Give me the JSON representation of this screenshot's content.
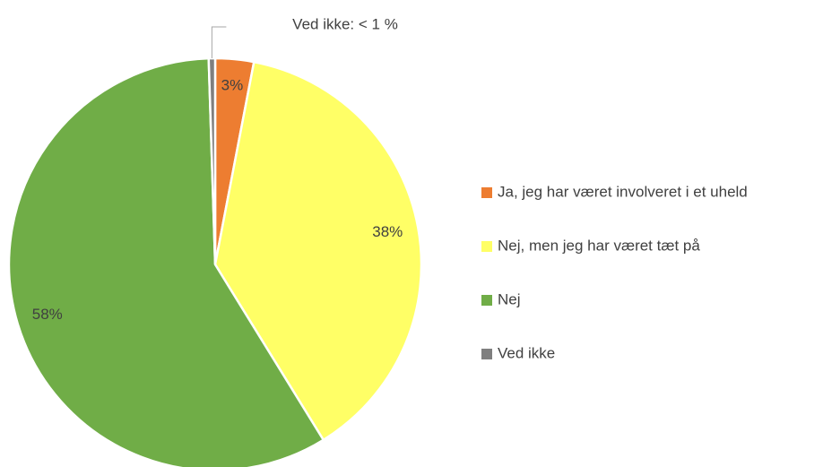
{
  "chart_data": {
    "type": "pie",
    "categories": [
      "Ja, jeg har været involveret i et uheld",
      "Nej, men jeg har været tæt på",
      "Nej",
      "Ved ikke"
    ],
    "values": [
      3,
      38,
      58,
      0.5
    ],
    "value_labels": [
      "3%",
      "38%",
      "58%",
      "Ved ikke: < 1 %"
    ],
    "colors": [
      "#ed7d31",
      "#ffff66",
      "#70ad47",
      "#7f7f7f"
    ],
    "legend": "right"
  }
}
